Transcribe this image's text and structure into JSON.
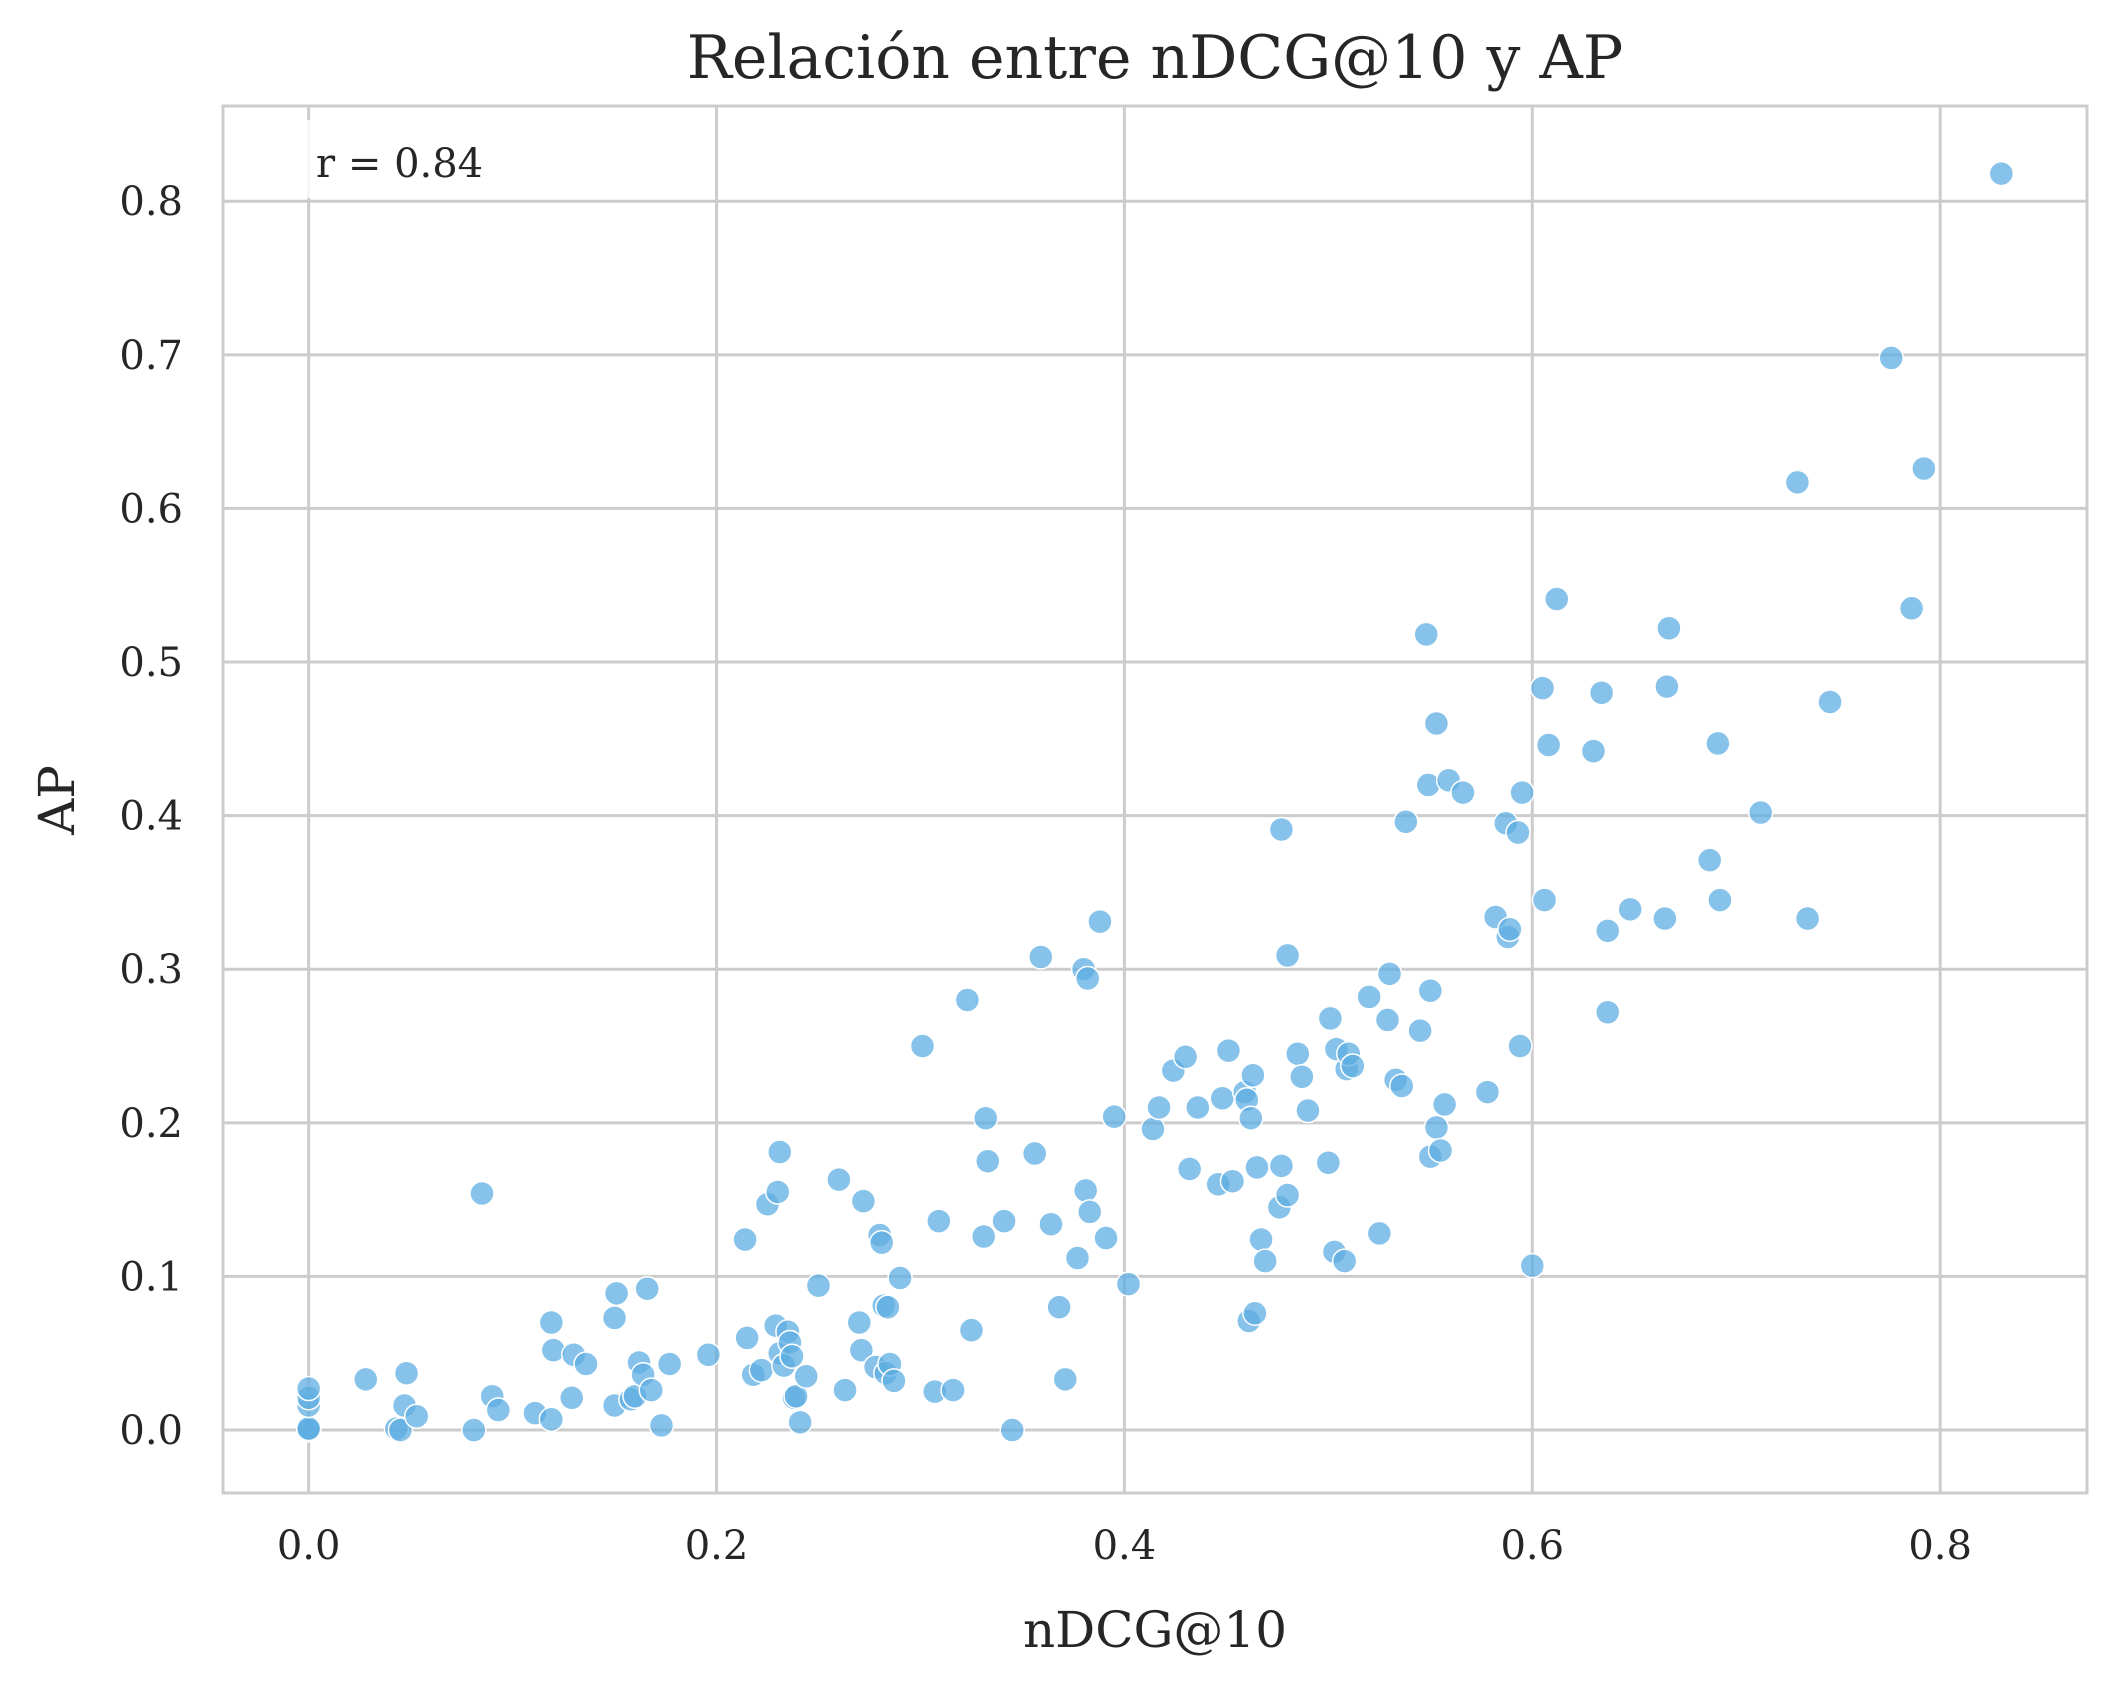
{
  "chart_data": {
    "type": "scatter",
    "title": "Relación entre nDCG@10 y AP",
    "xlabel": "nDCG@10",
    "ylabel": "AP",
    "xlim": [
      -0.042,
      0.872
    ],
    "ylim": [
      -0.041,
      0.862
    ],
    "xticks": [
      "0.0",
      "0.2",
      "0.4",
      "0.6",
      "0.8"
    ],
    "yticks": [
      "0.0",
      "0.1",
      "0.2",
      "0.3",
      "0.4",
      "0.5",
      "0.6",
      "0.7",
      "0.8"
    ],
    "grid": true,
    "annotation": "r = 0.84",
    "marker_color": "#5dade2",
    "points": [
      [
        0.0,
        0.0
      ],
      [
        0.0,
        0.0
      ],
      [
        0.0,
        0.001
      ],
      [
        0.0,
        0.016
      ],
      [
        0.0,
        0.021
      ],
      [
        0.0,
        0.027
      ],
      [
        0.028,
        0.033
      ],
      [
        0.043,
        0.001
      ],
      [
        0.045,
        0.0
      ],
      [
        0.047,
        0.016
      ],
      [
        0.048,
        0.037
      ],
      [
        0.053,
        0.009
      ],
      [
        0.081,
        0.0
      ],
      [
        0.085,
        0.154
      ],
      [
        0.09,
        0.022
      ],
      [
        0.093,
        0.013
      ],
      [
        0.111,
        0.011
      ],
      [
        0.119,
        0.007
      ],
      [
        0.119,
        0.07
      ],
      [
        0.12,
        0.052
      ],
      [
        0.129,
        0.021
      ],
      [
        0.13,
        0.049
      ],
      [
        0.136,
        0.043
      ],
      [
        0.15,
        0.016
      ],
      [
        0.15,
        0.073
      ],
      [
        0.151,
        0.089
      ],
      [
        0.158,
        0.02
      ],
      [
        0.16,
        0.022
      ],
      [
        0.162,
        0.044
      ],
      [
        0.164,
        0.036
      ],
      [
        0.166,
        0.092
      ],
      [
        0.168,
        0.026
      ],
      [
        0.173,
        0.003
      ],
      [
        0.177,
        0.043
      ],
      [
        0.196,
        0.049
      ],
      [
        0.214,
        0.124
      ],
      [
        0.215,
        0.06
      ],
      [
        0.218,
        0.036
      ],
      [
        0.222,
        0.039
      ],
      [
        0.225,
        0.147
      ],
      [
        0.229,
        0.068
      ],
      [
        0.23,
        0.155
      ],
      [
        0.231,
        0.181
      ],
      [
        0.231,
        0.05
      ],
      [
        0.233,
        0.042
      ],
      [
        0.235,
        0.064
      ],
      [
        0.236,
        0.057
      ],
      [
        0.237,
        0.048
      ],
      [
        0.238,
        0.021
      ],
      [
        0.239,
        0.022
      ],
      [
        0.241,
        0.005
      ],
      [
        0.244,
        0.035
      ],
      [
        0.25,
        0.094
      ],
      [
        0.26,
        0.163
      ],
      [
        0.263,
        0.026
      ],
      [
        0.27,
        0.07
      ],
      [
        0.271,
        0.052
      ],
      [
        0.272,
        0.149
      ],
      [
        0.278,
        0.041
      ],
      [
        0.28,
        0.127
      ],
      [
        0.281,
        0.122
      ],
      [
        0.282,
        0.081
      ],
      [
        0.283,
        0.037
      ],
      [
        0.284,
        0.08
      ],
      [
        0.285,
        0.043
      ],
      [
        0.287,
        0.032
      ],
      [
        0.29,
        0.099
      ],
      [
        0.301,
        0.25
      ],
      [
        0.307,
        0.025
      ],
      [
        0.309,
        0.136
      ],
      [
        0.316,
        0.026
      ],
      [
        0.323,
        0.28
      ],
      [
        0.325,
        0.065
      ],
      [
        0.331,
        0.126
      ],
      [
        0.332,
        0.203
      ],
      [
        0.333,
        0.175
      ],
      [
        0.341,
        0.136
      ],
      [
        0.345,
        0.0
      ],
      [
        0.356,
        0.18
      ],
      [
        0.359,
        0.308
      ],
      [
        0.364,
        0.134
      ],
      [
        0.368,
        0.08
      ],
      [
        0.371,
        0.033
      ],
      [
        0.377,
        0.112
      ],
      [
        0.38,
        0.3
      ],
      [
        0.381,
        0.156
      ],
      [
        0.382,
        0.294
      ],
      [
        0.383,
        0.142
      ],
      [
        0.388,
        0.331
      ],
      [
        0.391,
        0.125
      ],
      [
        0.395,
        0.204
      ],
      [
        0.402,
        0.095
      ],
      [
        0.414,
        0.196
      ],
      [
        0.417,
        0.21
      ],
      [
        0.424,
        0.234
      ],
      [
        0.43,
        0.243
      ],
      [
        0.432,
        0.17
      ],
      [
        0.436,
        0.21
      ],
      [
        0.446,
        0.16
      ],
      [
        0.448,
        0.216
      ],
      [
        0.451,
        0.247
      ],
      [
        0.453,
        0.162
      ],
      [
        0.459,
        0.22
      ],
      [
        0.46,
        0.215
      ],
      [
        0.461,
        0.071
      ],
      [
        0.462,
        0.203
      ],
      [
        0.463,
        0.231
      ],
      [
        0.464,
        0.076
      ],
      [
        0.465,
        0.171
      ],
      [
        0.467,
        0.124
      ],
      [
        0.469,
        0.11
      ],
      [
        0.476,
        0.145
      ],
      [
        0.477,
        0.172
      ],
      [
        0.477,
        0.391
      ],
      [
        0.48,
        0.309
      ],
      [
        0.48,
        0.153
      ],
      [
        0.485,
        0.245
      ],
      [
        0.487,
        0.23
      ],
      [
        0.49,
        0.208
      ],
      [
        0.5,
        0.174
      ],
      [
        0.501,
        0.268
      ],
      [
        0.503,
        0.116
      ],
      [
        0.504,
        0.248
      ],
      [
        0.508,
        0.11
      ],
      [
        0.509,
        0.235
      ],
      [
        0.51,
        0.245
      ],
      [
        0.512,
        0.237
      ],
      [
        0.52,
        0.282
      ],
      [
        0.525,
        0.128
      ],
      [
        0.529,
        0.267
      ],
      [
        0.53,
        0.297
      ],
      [
        0.533,
        0.228
      ],
      [
        0.536,
        0.224
      ],
      [
        0.538,
        0.396
      ],
      [
        0.545,
        0.26
      ],
      [
        0.548,
        0.518
      ],
      [
        0.549,
        0.42
      ],
      [
        0.55,
        0.286
      ],
      [
        0.55,
        0.178
      ],
      [
        0.553,
        0.46
      ],
      [
        0.553,
        0.197
      ],
      [
        0.555,
        0.182
      ],
      [
        0.557,
        0.212
      ],
      [
        0.559,
        0.423
      ],
      [
        0.566,
        0.415
      ],
      [
        0.578,
        0.22
      ],
      [
        0.582,
        0.334
      ],
      [
        0.587,
        0.395
      ],
      [
        0.588,
        0.321
      ],
      [
        0.589,
        0.326
      ],
      [
        0.593,
        0.389
      ],
      [
        0.594,
        0.25
      ],
      [
        0.595,
        0.415
      ],
      [
        0.6,
        0.107
      ],
      [
        0.605,
        0.483
      ],
      [
        0.606,
        0.345
      ],
      [
        0.608,
        0.446
      ],
      [
        0.612,
        0.541
      ],
      [
        0.63,
        0.442
      ],
      [
        0.634,
        0.48
      ],
      [
        0.637,
        0.272
      ],
      [
        0.637,
        0.325
      ],
      [
        0.648,
        0.339
      ],
      [
        0.665,
        0.333
      ],
      [
        0.666,
        0.484
      ],
      [
        0.667,
        0.522
      ],
      [
        0.687,
        0.371
      ],
      [
        0.692,
        0.345
      ],
      [
        0.691,
        0.447
      ],
      [
        0.712,
        0.402
      ],
      [
        0.73,
        0.617
      ],
      [
        0.735,
        0.333
      ],
      [
        0.746,
        0.474
      ],
      [
        0.776,
        0.698
      ],
      [
        0.786,
        0.535
      ],
      [
        0.792,
        0.626
      ],
      [
        0.83,
        0.818
      ]
    ]
  }
}
